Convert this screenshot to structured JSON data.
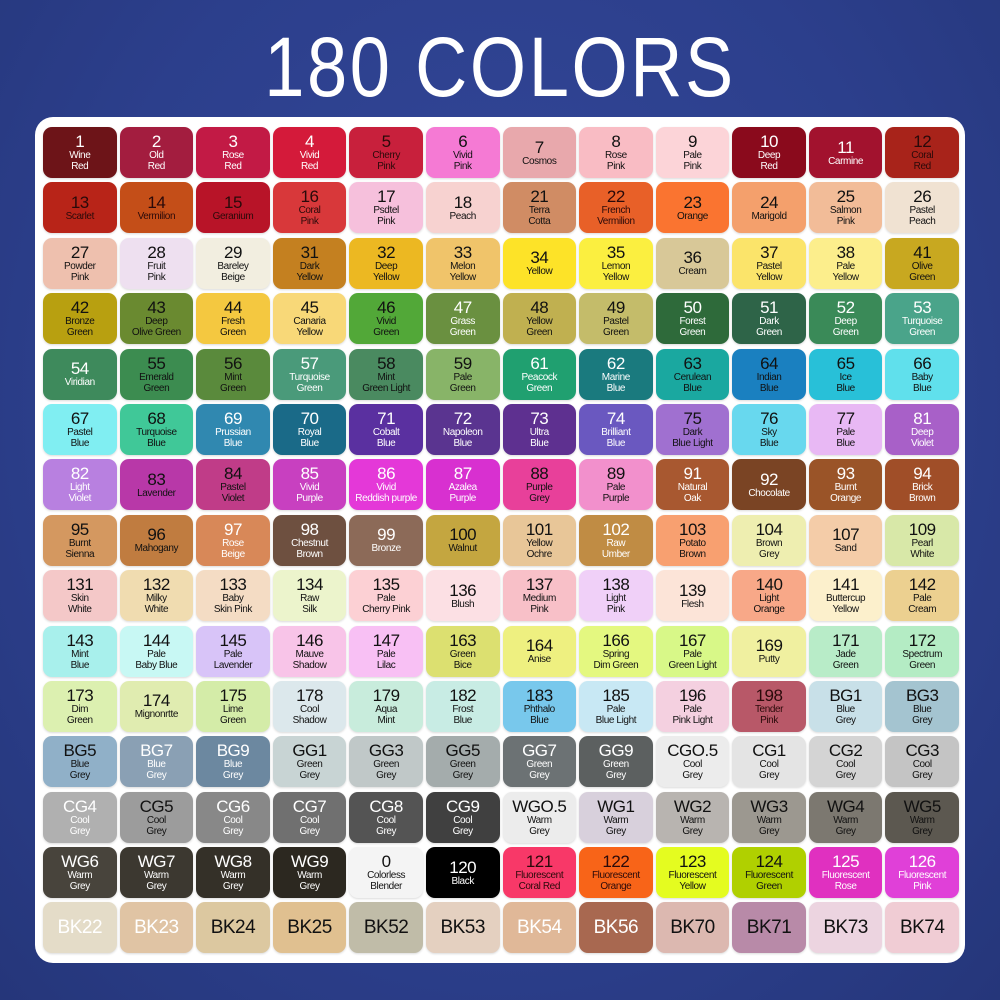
{
  "title": "180 COLORS",
  "background_color": "#2c3f8c",
  "swatches": [
    {
      "code": "1",
      "name": "Wine\nRed",
      "bg": "#6d1418",
      "fg": "#ffffff"
    },
    {
      "code": "2",
      "name": "Old\nRed",
      "bg": "#a31d3f",
      "fg": "#ffffff"
    },
    {
      "code": "3",
      "name": "Rose\nRed",
      "bg": "#c21a45",
      "fg": "#ffffff"
    },
    {
      "code": "4",
      "name": "Vivid\nRed",
      "bg": "#d41a3a",
      "fg": "#ffffff"
    },
    {
      "code": "5",
      "name": "Cherry\nPink",
      "bg": "#c8203c",
      "fg": "#2a0a0a"
    },
    {
      "code": "6",
      "name": "Vivid\nPink",
      "bg": "#f57ad4",
      "fg": "#111111"
    },
    {
      "code": "7",
      "name": "Cosmos",
      "bg": "#e8a8ac",
      "fg": "#111111"
    },
    {
      "code": "8",
      "name": "Rose\nPink",
      "bg": "#f9bcc4",
      "fg": "#111111"
    },
    {
      "code": "9",
      "name": "Pale\nPink",
      "bg": "#fcd4d8",
      "fg": "#111111"
    },
    {
      "code": "10",
      "name": "Deep\nRed",
      "bg": "#8a0a1c",
      "fg": "#ffffff"
    },
    {
      "code": "11",
      "name": "Carmine",
      "bg": "#a2122e",
      "fg": "#ffffff"
    },
    {
      "code": "12",
      "name": "Coral\nRed",
      "bg": "#a8231a",
      "fg": "#2a0a0a"
    },
    {
      "code": "13",
      "name": "Scarlet",
      "bg": "#b82418",
      "fg": "#2a0a0a"
    },
    {
      "code": "14",
      "name": "Vermilion",
      "bg": "#c44e18",
      "fg": "#2a0a0a"
    },
    {
      "code": "15",
      "name": "Geranium",
      "bg": "#b81428",
      "fg": "#2a0a0a"
    },
    {
      "code": "16",
      "name": "Coral\nPink",
      "bg": "#d8383a",
      "fg": "#2a0a0a"
    },
    {
      "code": "17",
      "name": "Psdtel\nPink",
      "bg": "#f6c0dc",
      "fg": "#111111"
    },
    {
      "code": "18",
      "name": "Peach",
      "bg": "#f7d2d0",
      "fg": "#111111"
    },
    {
      "code": "21",
      "name": "Terra\nCotta",
      "bg": "#d08c64",
      "fg": "#111111"
    },
    {
      "code": "22",
      "name": "French\nVermilion",
      "bg": "#e86028",
      "fg": "#2a0a0a"
    },
    {
      "code": "23",
      "name": "Orange",
      "bg": "#fa7430",
      "fg": "#111111"
    },
    {
      "code": "24",
      "name": "Marigold",
      "bg": "#f4a06c",
      "fg": "#111111"
    },
    {
      "code": "25",
      "name": "Salmon\nPink",
      "bg": "#f2bc98",
      "fg": "#111111"
    },
    {
      "code": "26",
      "name": "Pastel\nPeach",
      "bg": "#f0e2d2",
      "fg": "#111111"
    },
    {
      "code": "27",
      "name": "Powder\nPink",
      "bg": "#eec0ae",
      "fg": "#111111"
    },
    {
      "code": "28",
      "name": "Fruit\nPink",
      "bg": "#eee0f0",
      "fg": "#111111"
    },
    {
      "code": "29",
      "name": "Bareley\nBeige",
      "bg": "#f2eee0",
      "fg": "#111111"
    },
    {
      "code": "31",
      "name": "Dark\nYellow",
      "bg": "#c48020",
      "fg": "#111111"
    },
    {
      "code": "32",
      "name": "Deep\nYellow",
      "bg": "#ecb822",
      "fg": "#111111"
    },
    {
      "code": "33",
      "name": "Melon\nYellow",
      "bg": "#f0c46a",
      "fg": "#111111"
    },
    {
      "code": "34",
      "name": "Yellow",
      "bg": "#fde328",
      "fg": "#111111"
    },
    {
      "code": "35",
      "name": "Lemon\nYellow",
      "bg": "#fbef40",
      "fg": "#111111"
    },
    {
      "code": "36",
      "name": "Cream",
      "bg": "#d8c898",
      "fg": "#111111"
    },
    {
      "code": "37",
      "name": "Pastel\nYellow",
      "bg": "#fbe46a",
      "fg": "#111111"
    },
    {
      "code": "38",
      "name": "Pale\nYellow",
      "bg": "#fcee8c",
      "fg": "#111111"
    },
    {
      "code": "41",
      "name": "Olive\nGreen",
      "bg": "#c8a820",
      "fg": "#111111"
    },
    {
      "code": "42",
      "name": "Bronze\nGreen",
      "bg": "#b8a010",
      "fg": "#111111"
    },
    {
      "code": "43",
      "name": "Deep\nOlive Green",
      "bg": "#6a8a30",
      "fg": "#111111"
    },
    {
      "code": "44",
      "name": "Fresh\nGreen",
      "bg": "#f4c840",
      "fg": "#111111"
    },
    {
      "code": "45",
      "name": "Canaria\nYellow",
      "bg": "#f8d878",
      "fg": "#111111"
    },
    {
      "code": "46",
      "name": "Vivid\nGreen",
      "bg": "#52a838",
      "fg": "#111111"
    },
    {
      "code": "47",
      "name": "Grass\nGreen",
      "bg": "#6a9040",
      "fg": "#ffffff"
    },
    {
      "code": "48",
      "name": "Yellow\nGreen",
      "bg": "#c0b050",
      "fg": "#111111"
    },
    {
      "code": "49",
      "name": "Pastel\nGreen",
      "bg": "#c4bc6a",
      "fg": "#111111"
    },
    {
      "code": "50",
      "name": "Forest\nGreen",
      "bg": "#2e6a3a",
      "fg": "#ffffff"
    },
    {
      "code": "51",
      "name": "Dark\nGreen",
      "bg": "#2e6448",
      "fg": "#ffffff"
    },
    {
      "code": "52",
      "name": "Deep\nGreen",
      "bg": "#3a8a58",
      "fg": "#ffffff"
    },
    {
      "code": "53",
      "name": "Turquoise\nGreen",
      "bg": "#4aa48a",
      "fg": "#ffffff"
    },
    {
      "code": "54",
      "name": "Viridian",
      "bg": "#3e8a5c",
      "fg": "#ffffff"
    },
    {
      "code": "55",
      "name": "Emerald\nGreen",
      "bg": "#3c8c50",
      "fg": "#111111"
    },
    {
      "code": "56",
      "name": "Mint\nGreen",
      "bg": "#5a8a3c",
      "fg": "#111111"
    },
    {
      "code": "57",
      "name": "Turquoise\nGreen",
      "bg": "#4a9a7a",
      "fg": "#ffffff"
    },
    {
      "code": "58",
      "name": "Mint\nGreen Light",
      "bg": "#4a8a60",
      "fg": "#111111"
    },
    {
      "code": "59",
      "name": "Pale\nGreen",
      "bg": "#88b468",
      "fg": "#111111"
    },
    {
      "code": "61",
      "name": "Peacock\nGreen",
      "bg": "#20a070",
      "fg": "#ffffff"
    },
    {
      "code": "62",
      "name": "Marine\nBlue",
      "bg": "#1a7a7e",
      "fg": "#ffffff"
    },
    {
      "code": "63",
      "name": "Cerulean\nBlue",
      "bg": "#1aa8a0",
      "fg": "#111111"
    },
    {
      "code": "64",
      "name": "Indian\nBlue",
      "bg": "#1a80c0",
      "fg": "#111111"
    },
    {
      "code": "65",
      "name": "Ice\nBlue",
      "bg": "#28c0d8",
      "fg": "#111111"
    },
    {
      "code": "66",
      "name": "Baby\nBlue",
      "bg": "#60e0ec",
      "fg": "#111111"
    },
    {
      "code": "67",
      "name": "Pastel\nBlue",
      "bg": "#80eef2",
      "fg": "#111111"
    },
    {
      "code": "68",
      "name": "Turquoise\nBlue",
      "bg": "#40c898",
      "fg": "#111111"
    },
    {
      "code": "69",
      "name": "Prussian\nBlue",
      "bg": "#3088b0",
      "fg": "#ffffff"
    },
    {
      "code": "70",
      "name": "Royal\nBlue",
      "bg": "#1a6a88",
      "fg": "#ffffff"
    },
    {
      "code": "71",
      "name": "Cobalt\nBlue",
      "bg": "#5a30a0",
      "fg": "#ffffff"
    },
    {
      "code": "72",
      "name": "Napoleon\nBlue",
      "bg": "#5a3490",
      "fg": "#ffffff"
    },
    {
      "code": "73",
      "name": "Ultra\nBlue",
      "bg": "#5e3090",
      "fg": "#ffffff"
    },
    {
      "code": "74",
      "name": "Brilliant\nBlue",
      "bg": "#6a58c0",
      "fg": "#ffffff"
    },
    {
      "code": "75",
      "name": "Dark\nBlue Light",
      "bg": "#a070d0",
      "fg": "#111111"
    },
    {
      "code": "76",
      "name": "Sky\nBlue",
      "bg": "#68d8ee",
      "fg": "#111111"
    },
    {
      "code": "77",
      "name": "Pale\nBlue",
      "bg": "#e8b8f4",
      "fg": "#111111"
    },
    {
      "code": "81",
      "name": "Deep\nViolet",
      "bg": "#a860c8",
      "fg": "#ffffff"
    },
    {
      "code": "82",
      "name": "Light\nViolet",
      "bg": "#b880e0",
      "fg": "#ffffff"
    },
    {
      "code": "83",
      "name": "Lavender",
      "bg": "#b838a8",
      "fg": "#111111"
    },
    {
      "code": "84",
      "name": "Pastel\nViolet",
      "bg": "#c03c88",
      "fg": "#111111"
    },
    {
      "code": "85",
      "name": "Vivid\nPurple",
      "bg": "#c840c0",
      "fg": "#ffffff"
    },
    {
      "code": "86",
      "name": "Vivid\nReddish purple",
      "bg": "#e438d8",
      "fg": "#ffffff"
    },
    {
      "code": "87",
      "name": "Azalea\nPurple",
      "bg": "#d830d0",
      "fg": "#ffffff"
    },
    {
      "code": "88",
      "name": "Purple\nGrey",
      "bg": "#e8409a",
      "fg": "#111111"
    },
    {
      "code": "89",
      "name": "Pale\nPurple",
      "bg": "#f290cc",
      "fg": "#111111"
    },
    {
      "code": "91",
      "name": "Natural\nOak",
      "bg": "#a85830",
      "fg": "#ffffff"
    },
    {
      "code": "92",
      "name": "Chocolate",
      "bg": "#7a4424",
      "fg": "#ffffff"
    },
    {
      "code": "93",
      "name": "Burnt\nOrange",
      "bg": "#9a5428",
      "fg": "#ffffff"
    },
    {
      "code": "94",
      "name": "Brick\nBrown",
      "bg": "#a04e28",
      "fg": "#ffffff"
    },
    {
      "code": "95",
      "name": "Burnt\nSienna",
      "bg": "#d49860",
      "fg": "#111111"
    },
    {
      "code": "96",
      "name": "Mahogany",
      "bg": "#c07c40",
      "fg": "#111111"
    },
    {
      "code": "97",
      "name": "Rose\nBeige",
      "bg": "#d88858",
      "fg": "#ffffff"
    },
    {
      "code": "98",
      "name": "Chestnut\nBrown",
      "bg": "#6e5040",
      "fg": "#ffffff"
    },
    {
      "code": "99",
      "name": "Bronze",
      "bg": "#8c6a58",
      "fg": "#ffffff"
    },
    {
      "code": "100",
      "name": "Walnut",
      "bg": "#c4a640",
      "fg": "#111111"
    },
    {
      "code": "101",
      "name": "Yellow\nOchre",
      "bg": "#e8c698",
      "fg": "#111111"
    },
    {
      "code": "102",
      "name": "Raw\nUmber",
      "bg": "#c08c44",
      "fg": "#ffffff"
    },
    {
      "code": "103",
      "name": "Potato\nBrown",
      "bg": "#f8a070",
      "fg": "#111111"
    },
    {
      "code": "104",
      "name": "Brown\nGrey",
      "bg": "#eeeeb0",
      "fg": "#111111"
    },
    {
      "code": "107",
      "name": "Sand",
      "bg": "#f4cca8",
      "fg": "#111111"
    },
    {
      "code": "109",
      "name": "Pearl\nWhite",
      "bg": "#d8e8a8",
      "fg": "#111111"
    },
    {
      "code": "131",
      "name": "Skin\nWhite",
      "bg": "#f4c8c8",
      "fg": "#111111"
    },
    {
      "code": "132",
      "name": "Milky\nWhite",
      "bg": "#f0dcb0",
      "fg": "#111111"
    },
    {
      "code": "133",
      "name": "Baby\nSkin Pink",
      "bg": "#f4dcc4",
      "fg": "#111111"
    },
    {
      "code": "134",
      "name": "Raw\nSilk",
      "bg": "#ecf4cc",
      "fg": "#111111"
    },
    {
      "code": "135",
      "name": "Pale\nCherry Pink",
      "bg": "#fcd0d4",
      "fg": "#111111"
    },
    {
      "code": "136",
      "name": "Blush",
      "bg": "#fce0e4",
      "fg": "#111111"
    },
    {
      "code": "137",
      "name": "Medium\nPink",
      "bg": "#f8c0c8",
      "fg": "#111111"
    },
    {
      "code": "138",
      "name": "Light\nPink",
      "bg": "#f0d0f8",
      "fg": "#111111"
    },
    {
      "code": "139",
      "name": "Flesh",
      "bg": "#fce4d8",
      "fg": "#111111"
    },
    {
      "code": "140",
      "name": "Light\nOrange",
      "bg": "#f8a888",
      "fg": "#111111"
    },
    {
      "code": "141",
      "name": "Buttercup\nYellow",
      "bg": "#fcf0cc",
      "fg": "#111111"
    },
    {
      "code": "142",
      "name": "Pale\nCream",
      "bg": "#ecd090",
      "fg": "#111111"
    },
    {
      "code": "143",
      "name": "Mint\nBlue",
      "bg": "#a8f0ec",
      "fg": "#111111"
    },
    {
      "code": "144",
      "name": "Pale\nBaby Blue",
      "bg": "#c8f8f4",
      "fg": "#111111"
    },
    {
      "code": "145",
      "name": "Pale\nLavender",
      "bg": "#d8c4f8",
      "fg": "#111111"
    },
    {
      "code": "146",
      "name": "Mauve\nShadow",
      "bg": "#f8c4e8",
      "fg": "#111111"
    },
    {
      "code": "147",
      "name": "Pale\nLilac",
      "bg": "#f8c0f4",
      "fg": "#111111"
    },
    {
      "code": "163",
      "name": "Green\nBice",
      "bg": "#dce070",
      "fg": "#111111"
    },
    {
      "code": "164",
      "name": "Anise",
      "bg": "#eef080",
      "fg": "#111111"
    },
    {
      "code": "166",
      "name": "Spring\nDim Green",
      "bg": "#e4f880",
      "fg": "#111111"
    },
    {
      "code": "167",
      "name": "Pale\nGreen Light",
      "bg": "#d8f888",
      "fg": "#111111"
    },
    {
      "code": "169",
      "name": "Putty",
      "bg": "#f0f0a0",
      "fg": "#111111"
    },
    {
      "code": "171",
      "name": "Jade\nGreen",
      "bg": "#b8ecc8",
      "fg": "#111111"
    },
    {
      "code": "172",
      "name": "Spectrum\nGreen",
      "bg": "#b4ecc4",
      "fg": "#111111"
    },
    {
      "code": "173",
      "name": "Dim\nGreen",
      "bg": "#dcf0b0",
      "fg": "#111111"
    },
    {
      "code": "174",
      "name": "Mignonrtte",
      "bg": "#e0ecb0",
      "fg": "#111111"
    },
    {
      "code": "175",
      "name": "Lime\nGreen",
      "bg": "#d4eca8",
      "fg": "#111111"
    },
    {
      "code": "178",
      "name": "Cool\nShadow",
      "bg": "#dce8ec",
      "fg": "#111111"
    },
    {
      "code": "179",
      "name": "Aqua\nMint",
      "bg": "#c8ecdc",
      "fg": "#111111"
    },
    {
      "code": "182",
      "name": "Frost\nBlue",
      "bg": "#c8ece4",
      "fg": "#111111"
    },
    {
      "code": "183",
      "name": "Phthalo\nBlue",
      "bg": "#78c8ec",
      "fg": "#111111"
    },
    {
      "code": "185",
      "name": "Pale\nBlue Light",
      "bg": "#c8e8f4",
      "fg": "#111111"
    },
    {
      "code": "196",
      "name": "Pale\nPink Light",
      "bg": "#f4d0e0",
      "fg": "#111111"
    },
    {
      "code": "198",
      "name": "Tender\nPink",
      "bg": "#b85868",
      "fg": "#2a0a0a"
    },
    {
      "code": "BG1",
      "name": "Blue\nGrey",
      "bg": "#c8e0e8",
      "fg": "#111111"
    },
    {
      "code": "BG3",
      "name": "Blue\nGrey",
      "bg": "#a4c4d0",
      "fg": "#111111"
    },
    {
      "code": "BG5",
      "name": "Blue\nGrey",
      "bg": "#90b0c8",
      "fg": "#111111"
    },
    {
      "code": "BG7",
      "name": "Blue\nGrey",
      "bg": "#8aa0b4",
      "fg": "#ffffff"
    },
    {
      "code": "BG9",
      "name": "Blue\nGrey",
      "bg": "#6c88a0",
      "fg": "#ffffff"
    },
    {
      "code": "GG1",
      "name": "Green\nGrey",
      "bg": "#c8d4d4",
      "fg": "#111111"
    },
    {
      "code": "GG3",
      "name": "Green\nGrey",
      "bg": "#c0c8c8",
      "fg": "#111111"
    },
    {
      "code": "GG5",
      "name": "Green\nGrey",
      "bg": "#a4acac",
      "fg": "#111111"
    },
    {
      "code": "GG7",
      "name": "Green\nGrey",
      "bg": "#6c7274",
      "fg": "#ffffff"
    },
    {
      "code": "GG9",
      "name": "Green\nGrey",
      "bg": "#5c6060",
      "fg": "#ffffff"
    },
    {
      "code": "CGO.5",
      "name": "Cool\nGrey",
      "bg": "#ececec",
      "fg": "#111111"
    },
    {
      "code": "CG1",
      "name": "Cool\nGrey",
      "bg": "#e4e4e4",
      "fg": "#111111"
    },
    {
      "code": "CG2",
      "name": "Cool\nGrey",
      "bg": "#d4d4d4",
      "fg": "#111111"
    },
    {
      "code": "CG3",
      "name": "Cool\nGrey",
      "bg": "#c4c4c4",
      "fg": "#111111"
    },
    {
      "code": "CG4",
      "name": "Cool\nGrey",
      "bg": "#b0b0b0",
      "fg": "#ffffff"
    },
    {
      "code": "CG5",
      "name": "Cool\nGrey",
      "bg": "#9c9c9c",
      "fg": "#111111"
    },
    {
      "code": "CG6",
      "name": "Cool\nGrey",
      "bg": "#888888",
      "fg": "#ffffff"
    },
    {
      "code": "CG7",
      "name": "Cool\nGrey",
      "bg": "#707070",
      "fg": "#ffffff"
    },
    {
      "code": "CG8",
      "name": "Cool\nGrey",
      "bg": "#545454",
      "fg": "#ffffff"
    },
    {
      "code": "CG9",
      "name": "Cool\nGrey",
      "bg": "#404040",
      "fg": "#ffffff"
    },
    {
      "code": "WGO.5",
      "name": "Warm\nGrey",
      "bg": "#ececec",
      "fg": "#111111"
    },
    {
      "code": "WG1",
      "name": "Warm\nGrey",
      "bg": "#d8d0dc",
      "fg": "#111111"
    },
    {
      "code": "WG2",
      "name": "Warm\nGrey",
      "bg": "#b8b4b0",
      "fg": "#111111"
    },
    {
      "code": "WG3",
      "name": "Warm\nGrey",
      "bg": "#9c9890",
      "fg": "#111111"
    },
    {
      "code": "WG4",
      "name": "Warm\nGrey",
      "bg": "#7c7870",
      "fg": "#111111"
    },
    {
      "code": "WG5",
      "name": "Warm\nGrey",
      "bg": "#5c5850",
      "fg": "#111111"
    },
    {
      "code": "WG6",
      "name": "Warm\nGrey",
      "bg": "#48443c",
      "fg": "#ffffff"
    },
    {
      "code": "WG7",
      "name": "Warm\nGrey",
      "bg": "#3c3830",
      "fg": "#ffffff"
    },
    {
      "code": "WG8",
      "name": "Warm\nGrey",
      "bg": "#343028",
      "fg": "#ffffff"
    },
    {
      "code": "WG9",
      "name": "Warm\nGrey",
      "bg": "#2c2820",
      "fg": "#ffffff"
    },
    {
      "code": "0",
      "name": "Colorless\nBlender",
      "bg": "#f4f4f4",
      "fg": "#111111"
    },
    {
      "code": "120",
      "name": "Black",
      "bg": "#000000",
      "fg": "#ffffff"
    },
    {
      "code": "121",
      "name": "Fluorescent\nCoral Red",
      "bg": "#f83868",
      "fg": "#2a0a0a"
    },
    {
      "code": "122",
      "name": "Fluorescent\nOrange",
      "bg": "#f86418",
      "fg": "#2a0a0a"
    },
    {
      "code": "123",
      "name": "Fluorescent\nYellow",
      "bg": "#e4fc20",
      "fg": "#111111"
    },
    {
      "code": "124",
      "name": "Fluorescent\nGreen",
      "bg": "#b0d000",
      "fg": "#111111"
    },
    {
      "code": "125",
      "name": "Fluorescent\nRose",
      "bg": "#e030c0",
      "fg": "#ffffff"
    },
    {
      "code": "126",
      "name": "Fluorescent\nPink",
      "bg": "#e040d8",
      "fg": "#ffffff"
    },
    {
      "code": "BK22",
      "name": "",
      "bg": "#e4dcc8",
      "fg": "#ffffff"
    },
    {
      "code": "BK23",
      "name": "",
      "bg": "#e0c4a4",
      "fg": "#ffffff"
    },
    {
      "code": "BK24",
      "name": "",
      "bg": "#dcc8a0",
      "fg": "#111111"
    },
    {
      "code": "BK25",
      "name": "",
      "bg": "#e0c090",
      "fg": "#111111"
    },
    {
      "code": "BK52",
      "name": "",
      "bg": "#c0bca8",
      "fg": "#111111"
    },
    {
      "code": "BK53",
      "name": "",
      "bg": "#e4d0c0",
      "fg": "#111111"
    },
    {
      "code": "BK54",
      "name": "",
      "bg": "#e0b898",
      "fg": "#ffffff"
    },
    {
      "code": "BK56",
      "name": "",
      "bg": "#a86850",
      "fg": "#ffffff"
    },
    {
      "code": "BK70",
      "name": "",
      "bg": "#dcb8b0",
      "fg": "#111111"
    },
    {
      "code": "BK71",
      "name": "",
      "bg": "#b88aa8",
      "fg": "#111111"
    },
    {
      "code": "BK73",
      "name": "",
      "bg": "#ecd4e0",
      "fg": "#111111"
    },
    {
      "code": "BK74",
      "name": "",
      "bg": "#f0ccd4",
      "fg": "#111111"
    }
  ]
}
